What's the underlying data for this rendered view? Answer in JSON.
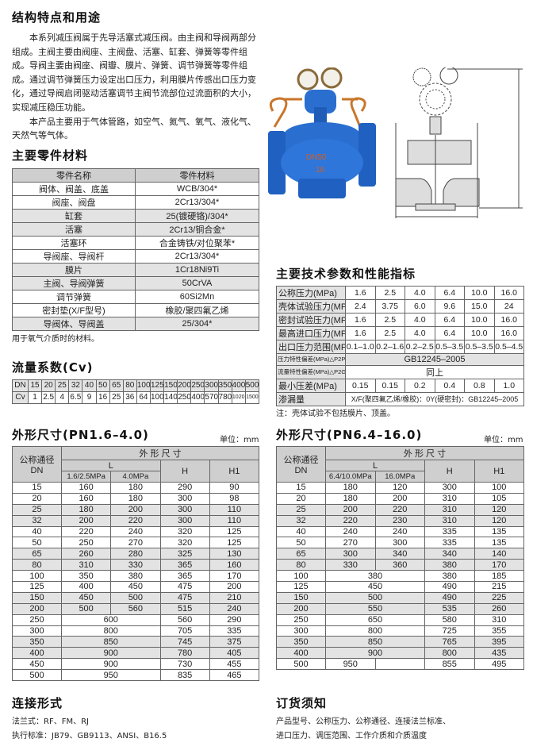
{
  "intro": {
    "title": "结构特点和用途",
    "paragraphs": [
      "本系列减压阀属于先导活塞式减压阀。由主阀和导阀两部分组成。主阀主要由阀座、主阀盘、活塞、缸套、弹簧等零件组成。导阀主要由阀座、阀瓣、膜片、弹簧、调节弹簧等零件组成。通过调节弹簧压力设定出口压力，利用膜片传感出口压力变化，通过导阀启闭驱动活塞调节主阀节流部位过流面积的大小，实现减压稳压功能。",
      "本产品主要用于气体管路，如空气、氮气、氧气、液化气、天然气等气体。"
    ]
  },
  "product_photo": {
    "marking_1": "DN50",
    "marking_2": "16",
    "body_color": "#2a6fd0",
    "tube_color": "#c8762a"
  },
  "materials": {
    "title": "主要零件材料",
    "headers": [
      "零件名称",
      "零件材料"
    ],
    "rows": [
      [
        "阀体、阀盖、底盖",
        "WCB/304*"
      ],
      [
        "阀座、阀盘",
        "2Cr13/304*"
      ],
      [
        "缸套",
        "25(镀硬铬)/304*"
      ],
      [
        "活塞",
        "2Cr13/铜合金*"
      ],
      [
        "活塞环",
        "合金铸铁/对位聚苯*"
      ],
      [
        "导阀座、导阀杆",
        "2Cr13/304*"
      ],
      [
        "膜片",
        "1Cr18Ni9Ti"
      ],
      [
        "主阀、导阀弹簧",
        "50CrVA"
      ],
      [
        "调节弹簧",
        "60Si2Mn"
      ],
      [
        "密封垫(X/F型号)",
        "橡胶/聚四氟乙烯"
      ],
      [
        "导阀体、导阀盖",
        "25/304*"
      ]
    ],
    "note": "用于氧气介质时的材料。"
  },
  "cv": {
    "title": "流量系数(Cv)",
    "dn_label": "DN",
    "cv_label": "Cv",
    "dn": [
      "15",
      "20",
      "25",
      "32",
      "40",
      "50",
      "65",
      "80",
      "100",
      "125",
      "150",
      "200",
      "250",
      "300",
      "350",
      "400",
      "500"
    ],
    "values": [
      "1",
      "2.5",
      "4",
      "6.5",
      "9",
      "16",
      "25",
      "36",
      "64",
      "100",
      "140",
      "250",
      "400",
      "570",
      "780",
      "1020",
      "1500"
    ]
  },
  "tech": {
    "title": "主要技术参数和性能指标",
    "rows": [
      {
        "label": "公称压力(MPa)",
        "values": [
          "1.6",
          "2.5",
          "4.0",
          "6.4",
          "10.0",
          "16.0"
        ]
      },
      {
        "label": "壳体试验压力(MPa)*",
        "values": [
          "2.4",
          "3.75",
          "6.0",
          "9.6",
          "15.0",
          "24"
        ]
      },
      {
        "label": "密封试验压力(MPa)",
        "values": [
          "1.6",
          "2.5",
          "4.0",
          "6.4",
          "10.0",
          "16.0"
        ]
      },
      {
        "label": "最高进口压力(MPa)",
        "values": [
          "1.6",
          "2.5",
          "4.0",
          "6.4",
          "10.0",
          "16.0"
        ]
      },
      {
        "label": "出口压力范围(MPa)",
        "values": [
          "0.1–1.0",
          "0.2–1.6",
          "0.2–2.5",
          "0.5–3.5",
          "0.5–3.5",
          "0.5–4.5"
        ]
      },
      {
        "label": "压力特性偏差(MPa)△P2P",
        "value": "GB12245–2005",
        "small": true
      },
      {
        "label": "流量特性偏差(MPa)△P2G",
        "value": "同上",
        "small": true
      },
      {
        "label": "最小压差(MPa)",
        "values": [
          "0.15",
          "0.15",
          "0.2",
          "0.4",
          "0.8",
          "1.0"
        ]
      },
      {
        "label": "渗漏量",
        "value": "X/F(聚四氟乙烯/橡胶)：0Y(硬密封)：GB12245–2005"
      }
    ],
    "note": "注：壳体试验不包括膜片、顶盖。"
  },
  "dim_low": {
    "title": "外形尺寸(PN1.6–4.0)",
    "unit": "单位：mm",
    "header_group": "外 形 尺 寸",
    "dn_header": "公称通径\nDN",
    "l_header": "L",
    "l1_header": "1.6/2.5MPa",
    "l2_header": "4.0MPa",
    "h_header": "H",
    "h1_header": "H1",
    "rows": [
      {
        "dn": "15",
        "l1": "160",
        "l2": "180",
        "h": "290",
        "h1": "90"
      },
      {
        "dn": "20",
        "l1": "160",
        "l2": "180",
        "h": "300",
        "h1": "98"
      },
      {
        "dn": "25",
        "l1": "180",
        "l2": "200",
        "h": "300",
        "h1": "110"
      },
      {
        "dn": "32",
        "l1": "200",
        "l2": "220",
        "h": "300",
        "h1": "110"
      },
      {
        "dn": "40",
        "l1": "220",
        "l2": "240",
        "h": "320",
        "h1": "125"
      },
      {
        "dn": "50",
        "l1": "250",
        "l2": "270",
        "h": "320",
        "h1": "125"
      },
      {
        "dn": "65",
        "l1": "260",
        "l2": "280",
        "h": "325",
        "h1": "130"
      },
      {
        "dn": "80",
        "l1": "310",
        "l2": "330",
        "h": "365",
        "h1": "160"
      },
      {
        "dn": "100",
        "l1": "350",
        "l2": "380",
        "h": "365",
        "h1": "170"
      },
      {
        "dn": "125",
        "l1": "400",
        "l2": "450",
        "h": "475",
        "h1": "200"
      },
      {
        "dn": "150",
        "l1": "450",
        "l2": "500",
        "h": "475",
        "h1": "210"
      },
      {
        "dn": "200",
        "l1": "500",
        "l2": "560",
        "h": "515",
        "h1": "240"
      },
      {
        "dn": "250",
        "l": "600",
        "h": "560",
        "h1": "290"
      },
      {
        "dn": "300",
        "l": "800",
        "h": "705",
        "h1": "335"
      },
      {
        "dn": "350",
        "l": "850",
        "h": "745",
        "h1": "375"
      },
      {
        "dn": "400",
        "l": "900",
        "h": "780",
        "h1": "405"
      },
      {
        "dn": "450",
        "l": "900",
        "h": "730",
        "h1": "455"
      },
      {
        "dn": "500",
        "l": "950",
        "h": "835",
        "h1": "465"
      }
    ]
  },
  "dim_high": {
    "title": "外形尺寸(PN6.4–16.0)",
    "unit": "单位：mm",
    "header_group": "外 形 尺 寸",
    "dn_header": "公称通径\nDN",
    "l_header": "L",
    "l1_header": "6.4/10.0MPa",
    "l2_header": "16.0MPa",
    "h_header": "H",
    "h1_header": "H1",
    "rows": [
      {
        "dn": "15",
        "l1": "180",
        "l2": "120",
        "h": "300",
        "h1": "100"
      },
      {
        "dn": "20",
        "l1": "180",
        "l2": "200",
        "h": "310",
        "h1": "105"
      },
      {
        "dn": "25",
        "l1": "200",
        "l2": "220",
        "h": "310",
        "h1": "120"
      },
      {
        "dn": "32",
        "l1": "220",
        "l2": "230",
        "h": "310",
        "h1": "120"
      },
      {
        "dn": "40",
        "l1": "240",
        "l2": "240",
        "h": "335",
        "h1": "135"
      },
      {
        "dn": "50",
        "l1": "270",
        "l2": "300",
        "h": "335",
        "h1": "135"
      },
      {
        "dn": "65",
        "l1": "300",
        "l2": "340",
        "h": "340",
        "h1": "140"
      },
      {
        "dn": "80",
        "l1": "330",
        "l2": "360",
        "h": "380",
        "h1": "170"
      },
      {
        "dn": "100",
        "l": "380",
        "h": "380",
        "h1": "185"
      },
      {
        "dn": "125",
        "l": "450",
        "h": "490",
        "h1": "215"
      },
      {
        "dn": "150",
        "l": "500",
        "h": "490",
        "h1": "225"
      },
      {
        "dn": "200",
        "l": "550",
        "h": "535",
        "h1": "260"
      },
      {
        "dn": "250",
        "l": "650",
        "h": "580",
        "h1": "310"
      },
      {
        "dn": "300",
        "l": "800",
        "h": "725",
        "h1": "355"
      },
      {
        "dn": "350",
        "l": "850",
        "h": "765",
        "h1": "395"
      },
      {
        "dn": "400",
        "l": "900",
        "h": "800",
        "h1": "435"
      },
      {
        "dn": "500",
        "l1": "950",
        "l2": "",
        "h": "855",
        "h1": "495"
      }
    ]
  },
  "connection": {
    "title": "连接形式",
    "lines": [
      "法兰式：RF、FM、RJ",
      "执行标准：JB79、GB9113、ANSI、B16.5"
    ]
  },
  "ordering": {
    "title": "订货须知",
    "lines": [
      "产品型号、公称压力、公称通径、连接法兰标准、",
      "进口压力、调压范围、工作介质和介质温度"
    ]
  }
}
